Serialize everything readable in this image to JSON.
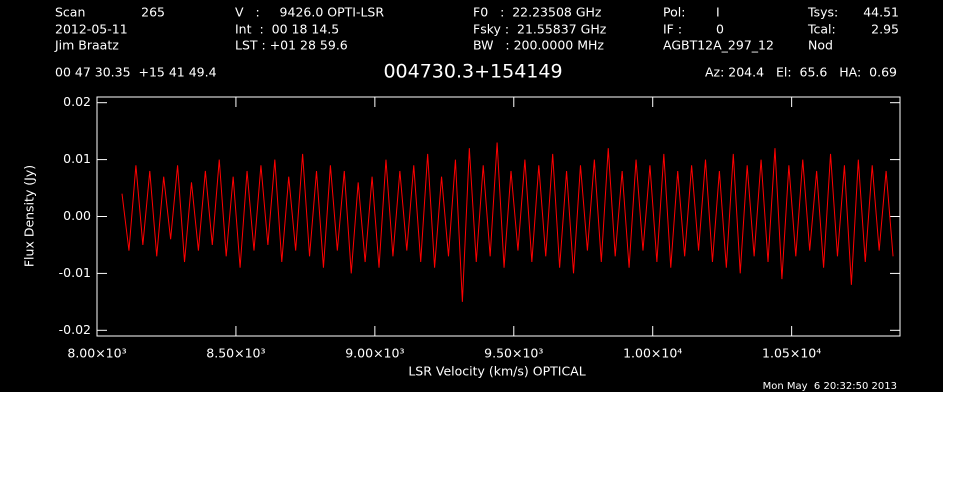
{
  "chart_data": {
    "type": "line",
    "title": "004730.3+154149",
    "header": {
      "scan_label": "Scan",
      "scan": "265",
      "date": "2012-05-11",
      "observer": "Jim Braatz",
      "velocity": "V   :     9426.0 OPTI-LSR",
      "int": "Int  :  00 18 14.5",
      "lst": "LST : +01 28 59.6",
      "f0": "F0   :  22.23508 GHz",
      "fsky": "Fsky :  21.55837 GHz",
      "bw": "BW   : 200.0000 MHz",
      "pol_label": "Pol:",
      "pol": "I",
      "if_label": "IF :",
      "if": "0",
      "project": "AGBT12A_297_12",
      "tsys_label": "Tsys:",
      "tsys": "44.51",
      "tcal_label": "Tcal:",
      "tcal": "2.95",
      "mode": "Nod",
      "coords": "00 47 30.35  +15 41 49.4",
      "azelha": "Az: 204.4   El:  65.6   HA:  0.69"
    },
    "timestamp": "Mon May  6 20:32:50 2013",
    "x_label": "LSR Velocity (km/s) OPTICAL",
    "y_label": "Flux Density (Jy)",
    "xlim": [
      8000,
      10890
    ],
    "ylim": [
      -0.021,
      0.021
    ],
    "xticks": [
      {
        "value": 8000,
        "label": "8.00×10³"
      },
      {
        "value": 8500,
        "label": "8.50×10³"
      },
      {
        "value": 9000,
        "label": "9.00×10³"
      },
      {
        "value": 9500,
        "label": "9.50×10³"
      },
      {
        "value": 10000,
        "label": "1.00×10⁴"
      },
      {
        "value": 10500,
        "label": "1.05×10⁴"
      }
    ],
    "yticks": [
      -0.02,
      -0.01,
      {
        "value": 0,
        "label": "0.00"
      },
      0.01,
      0.02
    ],
    "x": [
      8090,
      8115,
      8140,
      8165,
      8190,
      8215,
      8240,
      8265,
      8290,
      8315,
      8340,
      8365,
      8390,
      8415,
      8440,
      8465,
      8490,
      8515,
      8540,
      8565,
      8590,
      8615,
      8640,
      8665,
      8690,
      8715,
      8740,
      8765,
      8790,
      8815,
      8840,
      8865,
      8890,
      8915,
      8940,
      8965,
      8990,
      9015,
      9040,
      9065,
      9090,
      9115,
      9140,
      9165,
      9190,
      9215,
      9240,
      9265,
      9290,
      9315,
      9340,
      9365,
      9390,
      9415,
      9440,
      9465,
      9490,
      9515,
      9540,
      9565,
      9590,
      9615,
      9640,
      9665,
      9690,
      9715,
      9740,
      9765,
      9790,
      9815,
      9840,
      9865,
      9890,
      9915,
      9940,
      9965,
      9990,
      10015,
      10040,
      10065,
      10090,
      10115,
      10140,
      10165,
      10190,
      10215,
      10240,
      10265,
      10290,
      10315,
      10340,
      10365,
      10390,
      10415,
      10440,
      10465,
      10490,
      10515,
      10540,
      10565,
      10590,
      10615,
      10640,
      10665,
      10690,
      10715,
      10740,
      10765,
      10790,
      10815,
      10840,
      10865
    ],
    "series": [
      {
        "color": "#ff0000",
        "values": [
          0.004,
          -0.006,
          0.009,
          -0.005,
          0.008,
          -0.007,
          0.007,
          -0.004,
          0.009,
          -0.008,
          0.006,
          -0.006,
          0.008,
          -0.005,
          0.01,
          -0.007,
          0.007,
          -0.009,
          0.008,
          -0.006,
          0.009,
          -0.005,
          0.01,
          -0.008,
          0.007,
          -0.006,
          0.011,
          -0.007,
          0.008,
          -0.009,
          0.009,
          -0.006,
          0.008,
          -0.01,
          0.006,
          -0.008,
          0.007,
          -0.009,
          0.01,
          -0.007,
          0.008,
          -0.006,
          0.009,
          -0.008,
          0.011,
          -0.009,
          0.007,
          -0.007,
          0.01,
          -0.015,
          0.012,
          -0.008,
          0.009,
          -0.007,
          0.013,
          -0.009,
          0.008,
          -0.006,
          0.01,
          -0.008,
          0.009,
          -0.007,
          0.011,
          -0.009,
          0.008,
          -0.01,
          0.009,
          -0.006,
          0.01,
          -0.008,
          0.012,
          -0.007,
          0.008,
          -0.009,
          0.01,
          -0.006,
          0.009,
          -0.008,
          0.011,
          -0.009,
          0.008,
          -0.007,
          0.009,
          -0.006,
          0.01,
          -0.008,
          0.008,
          -0.009,
          0.011,
          -0.01,
          0.009,
          -0.007,
          0.01,
          -0.008,
          0.012,
          -0.011,
          0.009,
          -0.007,
          0.01,
          -0.006,
          0.008,
          -0.009,
          0.011,
          -0.007,
          0.009,
          -0.012,
          0.01,
          -0.008,
          0.009,
          -0.006,
          0.008,
          -0.007
        ]
      }
    ]
  }
}
